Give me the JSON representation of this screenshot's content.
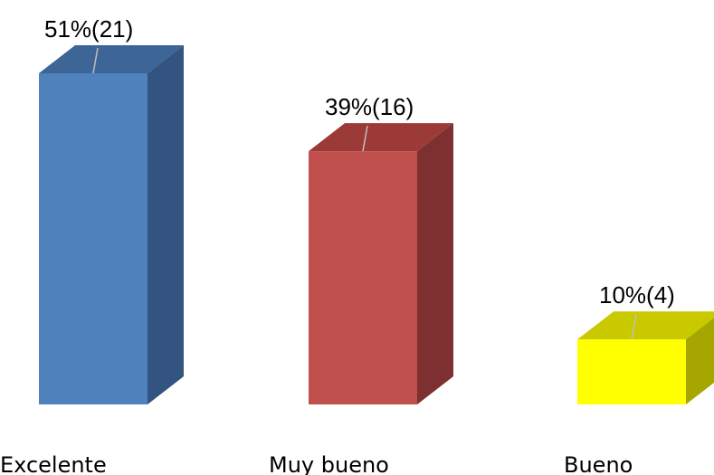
{
  "chart_data": {
    "type": "bar",
    "style": "3d-column",
    "categories": [
      "Excelente",
      "Muy bueno",
      "Bueno"
    ],
    "values": [
      51,
      39,
      10
    ],
    "counts": [
      21,
      16,
      4
    ],
    "data_labels": [
      "51%(21)",
      "39%(16)",
      "10%(4)"
    ],
    "unit": "%",
    "ylim": [
      0,
      51
    ],
    "colors": [
      {
        "front": "#4F81BD",
        "top": "#3D6596",
        "side": "#335380"
      },
      {
        "front": "#C0504D",
        "top": "#9C3A37",
        "side": "#7D302F"
      },
      {
        "front": "#FFFF00",
        "top": "#C9C900",
        "side": "#A6A600"
      }
    ],
    "grid": false,
    "legend": "none"
  }
}
